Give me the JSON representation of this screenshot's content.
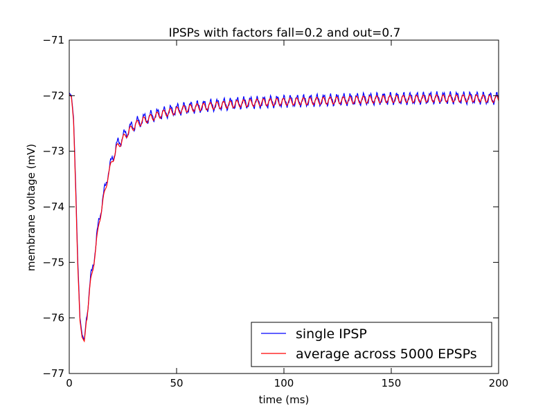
{
  "chart_data": {
    "type": "line",
    "title": "IPSPs with factors fall=0.2 and out=0.7",
    "xlabel": "time (ms)",
    "ylabel": "membrane voltage (mV)",
    "xlim": [
      0,
      200
    ],
    "ylim": [
      -77,
      -71
    ],
    "xticks": [
      "0",
      "50",
      "100",
      "150",
      "200"
    ],
    "yticks": [
      "−71",
      "−72",
      "−73",
      "−74",
      "−75",
      "−76",
      "−77"
    ],
    "grid": false,
    "legend_position": "bottom-right",
    "series": [
      {
        "name": "single IPSP",
        "color": "#0000ff",
        "x": [
          0,
          1,
          2,
          3,
          4,
          5,
          6,
          7,
          8,
          9,
          10,
          12,
          14,
          16,
          18,
          20,
          22,
          25,
          28,
          31,
          35,
          40,
          45,
          50,
          55,
          60,
          65,
          70,
          75,
          80,
          90,
          100,
          110,
          120,
          130,
          140,
          150,
          160,
          170,
          180,
          190,
          200
        ],
        "y": [
          -71.95,
          -72.0,
          -72.4,
          -73.6,
          -75.0,
          -76.0,
          -76.3,
          -76.4,
          -76.0,
          -75.65,
          -75.3,
          -74.8,
          -74.2,
          -73.8,
          -73.4,
          -73.15,
          -72.9,
          -72.75,
          -72.6,
          -72.5,
          -72.42,
          -72.35,
          -72.3,
          -72.25,
          -72.22,
          -72.2,
          -72.18,
          -72.16,
          -72.15,
          -72.13,
          -72.12,
          -72.1,
          -72.09,
          -72.08,
          -72.07,
          -72.06,
          -72.05,
          -72.05,
          -72.04,
          -72.04,
          -72.04,
          -72.05
        ]
      },
      {
        "name": "average across 5000 EPSPs",
        "color": "#ff0000",
        "x": [
          0,
          1,
          2,
          3,
          4,
          5,
          6,
          7,
          8,
          9,
          10,
          12,
          14,
          16,
          18,
          20,
          22,
          25,
          28,
          31,
          35,
          40,
          45,
          50,
          55,
          60,
          65,
          70,
          75,
          80,
          90,
          100,
          110,
          120,
          130,
          140,
          150,
          160,
          170,
          180,
          190,
          200
        ],
        "y": [
          -71.98,
          -72.02,
          -72.45,
          -73.7,
          -75.1,
          -76.05,
          -76.35,
          -76.42,
          -76.05,
          -75.7,
          -75.35,
          -74.85,
          -74.25,
          -73.85,
          -73.45,
          -73.18,
          -72.95,
          -72.78,
          -72.63,
          -72.52,
          -72.44,
          -72.37,
          -72.31,
          -72.27,
          -72.23,
          -72.21,
          -72.19,
          -72.17,
          -72.16,
          -72.14,
          -72.12,
          -72.11,
          -72.1,
          -72.09,
          -72.08,
          -72.07,
          -72.06,
          -72.06,
          -72.05,
          -72.05,
          -72.05,
          -72.06
        ]
      }
    ]
  }
}
